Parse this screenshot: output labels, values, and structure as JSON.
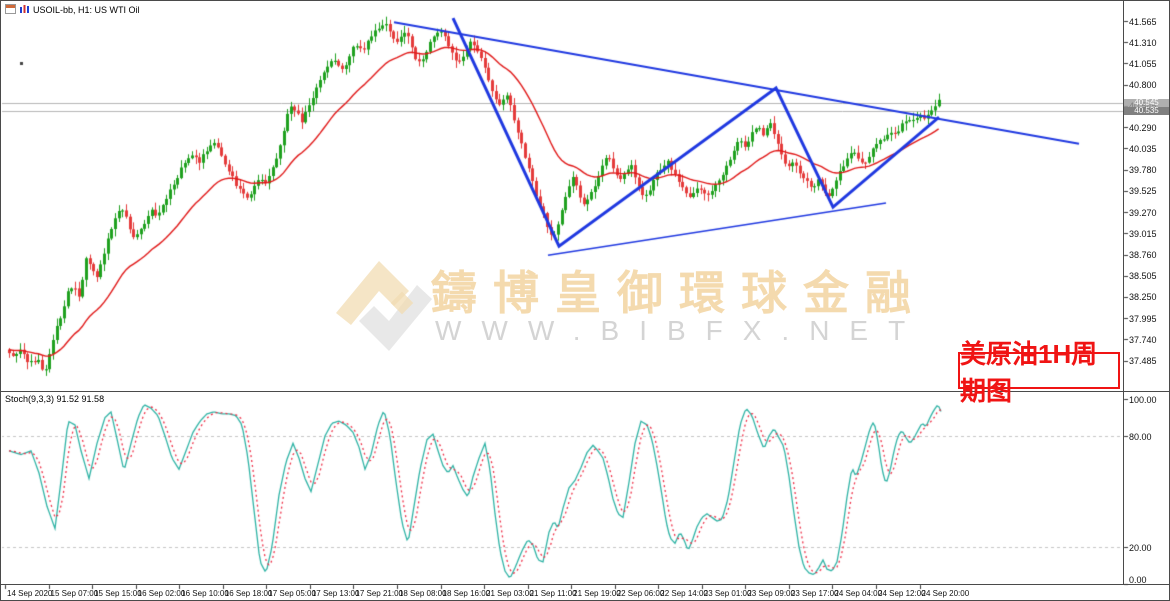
{
  "window": {
    "title": "USOIL-bb, H1: US WTI Oil"
  },
  "watermark": {
    "cjk": "鑄博皇御環球金融",
    "latin": "WWW.BIBFX.NET"
  },
  "annotation": {
    "label": "美原油1H周期图"
  },
  "indicator": {
    "label": "Stoch(9,3,3) 91.52 91.58"
  },
  "chart_data": {
    "type": "candlestick",
    "symbol": "USOIL-bb",
    "timeframe": "H1",
    "description": "US WTI Oil",
    "ask": "40.545",
    "bid": "40.535",
    "colors": {
      "bull": "#1fa11f",
      "bear": "#e43b3b",
      "ma": "#e01818",
      "trend": "#1f38e0",
      "stoch_k": "#2fb3a5",
      "stoch_d": "#ee3048",
      "grid": "#c4c4c4",
      "price_line": "#b4b4b4",
      "axis": "#333333"
    },
    "price_axis": {
      "max": 41.565,
      "step": 0.255,
      "min": 37.485,
      "labels": [
        "41.565",
        "41.310",
        "41.055",
        "40.800",
        "40.545",
        "40.290",
        "40.035",
        "39.780",
        "39.525",
        "39.270",
        "39.015",
        "38.760",
        "38.505",
        "38.250",
        "37.995",
        "37.740",
        "37.485"
      ]
    },
    "stoch_axis": {
      "labels": [
        "100.00",
        "80.00",
        "20.00",
        "0.00"
      ],
      "values": [
        100,
        80,
        20,
        0
      ],
      "dashed_levels": [
        80,
        20
      ],
      "last_k": 91.52,
      "last_d": 91.58
    },
    "time_axis": {
      "labels": [
        "14 Sep 2020",
        "15 Sep 07:00",
        "15 Sep 15:00",
        "16 Sep 02:00",
        "16 Sep 10:00",
        "16 Sep 18:00",
        "17 Sep 05:00",
        "17 Sep 13:00",
        "17 Sep 21:00",
        "18 Sep 08:00",
        "18 Sep 16:00",
        "21 Sep 03:00",
        "21 Sep 11:00",
        "21 Sep 19:00",
        "22 Sep 06:00",
        "22 Sep 14:00",
        "23 Sep 01:00",
        "23 Sep 09:00",
        "23 Sep 17:00",
        "24 Sep 04:00",
        "24 Sep 12:00",
        "24 Sep 20:00"
      ]
    },
    "price_path": [
      [
        8,
        37.62
      ],
      [
        16,
        37.55
      ],
      [
        24,
        37.6
      ],
      [
        32,
        37.45
      ],
      [
        40,
        37.5
      ],
      [
        46,
        37.32
      ],
      [
        52,
        37.55
      ],
      [
        58,
        37.85
      ],
      [
        64,
        38.05
      ],
      [
        70,
        38.3
      ],
      [
        76,
        38.4
      ],
      [
        82,
        38.25
      ],
      [
        88,
        38.7
      ],
      [
        94,
        38.6
      ],
      [
        100,
        38.5
      ],
      [
        106,
        38.75
      ],
      [
        112,
        39.0
      ],
      [
        118,
        39.2
      ],
      [
        124,
        39.35
      ],
      [
        130,
        39.15
      ],
      [
        136,
        38.95
      ],
      [
        142,
        39.05
      ],
      [
        148,
        39.15
      ],
      [
        154,
        39.3
      ],
      [
        160,
        39.2
      ],
      [
        166,
        39.35
      ],
      [
        172,
        39.5
      ],
      [
        178,
        39.65
      ],
      [
        184,
        39.8
      ],
      [
        190,
        39.9
      ],
      [
        196,
        39.95
      ],
      [
        202,
        39.85
      ],
      [
        208,
        40.0
      ],
      [
        214,
        40.1
      ],
      [
        220,
        40.05
      ],
      [
        226,
        39.9
      ],
      [
        232,
        39.75
      ],
      [
        238,
        39.6
      ],
      [
        244,
        39.5
      ],
      [
        250,
        39.45
      ],
      [
        256,
        39.55
      ],
      [
        262,
        39.7
      ],
      [
        268,
        39.6
      ],
      [
        274,
        39.75
      ],
      [
        280,
        39.95
      ],
      [
        286,
        40.25
      ],
      [
        292,
        40.55
      ],
      [
        298,
        40.5
      ],
      [
        304,
        40.35
      ],
      [
        310,
        40.5
      ],
      [
        316,
        40.65
      ],
      [
        322,
        40.85
      ],
      [
        328,
        41.0
      ],
      [
        334,
        41.1
      ],
      [
        340,
        41.05
      ],
      [
        346,
        40.95
      ],
      [
        352,
        41.15
      ],
      [
        358,
        41.3
      ],
      [
        364,
        41.2
      ],
      [
        370,
        41.3
      ],
      [
        376,
        41.45
      ],
      [
        382,
        41.5
      ],
      [
        388,
        41.55
      ],
      [
        394,
        41.4
      ],
      [
        400,
        41.3
      ],
      [
        406,
        41.45
      ],
      [
        412,
        41.35
      ],
      [
        418,
        41.1
      ],
      [
        424,
        41.05
      ],
      [
        430,
        41.25
      ],
      [
        436,
        41.4
      ],
      [
        442,
        41.45
      ],
      [
        448,
        41.35
      ],
      [
        454,
        41.2
      ],
      [
        460,
        41.05
      ],
      [
        466,
        41.15
      ],
      [
        472,
        41.3
      ],
      [
        478,
        41.25
      ],
      [
        484,
        41.1
      ],
      [
        490,
        40.9
      ],
      [
        496,
        40.7
      ],
      [
        502,
        40.55
      ],
      [
        508,
        40.7
      ],
      [
        514,
        40.5
      ],
      [
        520,
        40.25
      ],
      [
        526,
        40.0
      ],
      [
        532,
        39.75
      ],
      [
        538,
        39.5
      ],
      [
        544,
        39.3
      ],
      [
        550,
        39.1
      ],
      [
        556,
        38.95
      ],
      [
        562,
        39.2
      ],
      [
        568,
        39.45
      ],
      [
        574,
        39.7
      ],
      [
        580,
        39.55
      ],
      [
        586,
        39.35
      ],
      [
        592,
        39.45
      ],
      [
        598,
        39.6
      ],
      [
        604,
        39.8
      ],
      [
        610,
        39.95
      ],
      [
        616,
        39.8
      ],
      [
        622,
        39.65
      ],
      [
        628,
        39.75
      ],
      [
        634,
        39.85
      ],
      [
        640,
        39.6
      ],
      [
        646,
        39.45
      ],
      [
        652,
        39.55
      ],
      [
        658,
        39.7
      ],
      [
        664,
        39.8
      ],
      [
        670,
        39.9
      ],
      [
        676,
        39.75
      ],
      [
        682,
        39.6
      ],
      [
        688,
        39.5
      ],
      [
        694,
        39.45
      ],
      [
        700,
        39.55
      ],
      [
        706,
        39.5
      ],
      [
        712,
        39.45
      ],
      [
        718,
        39.6
      ],
      [
        724,
        39.7
      ],
      [
        730,
        39.85
      ],
      [
        736,
        40.0
      ],
      [
        742,
        40.15
      ],
      [
        748,
        40.05
      ],
      [
        754,
        40.2
      ],
      [
        760,
        40.3
      ],
      [
        766,
        40.2
      ],
      [
        772,
        40.35
      ],
      [
        778,
        40.15
      ],
      [
        784,
        39.95
      ],
      [
        790,
        39.8
      ],
      [
        796,
        39.9
      ],
      [
        802,
        39.75
      ],
      [
        808,
        39.65
      ],
      [
        814,
        39.55
      ],
      [
        820,
        39.65
      ],
      [
        826,
        39.55
      ],
      [
        832,
        39.45
      ],
      [
        838,
        39.65
      ],
      [
        844,
        39.8
      ],
      [
        850,
        39.9
      ],
      [
        856,
        40.0
      ],
      [
        862,
        39.9
      ],
      [
        868,
        39.85
      ],
      [
        874,
        40.0
      ],
      [
        880,
        40.1
      ],
      [
        886,
        40.15
      ],
      [
        892,
        40.25
      ],
      [
        898,
        40.2
      ],
      [
        904,
        40.3
      ],
      [
        910,
        40.4
      ],
      [
        916,
        40.35
      ],
      [
        922,
        40.45
      ],
      [
        928,
        40.4
      ],
      [
        934,
        40.5
      ],
      [
        939,
        40.55
      ],
      [
        943,
        40.7
      ]
    ],
    "trendlines": [
      {
        "name": "descending-resistance",
        "width": 2,
        "points": [
          [
            393,
            41.55
          ],
          [
            1078,
            40.09
          ]
        ]
      },
      {
        "name": "zigzag",
        "width": 3,
        "points": [
          [
            452,
            41.6
          ],
          [
            558,
            38.86
          ],
          [
            775,
            40.76
          ],
          [
            832,
            39.33
          ],
          [
            938,
            40.41
          ]
        ]
      },
      {
        "name": "ascending-support",
        "width": 1.5,
        "points": [
          [
            547,
            38.75
          ],
          [
            885,
            39.38
          ]
        ]
      }
    ],
    "stoch_k_path": [
      [
        8,
        72
      ],
      [
        20,
        70
      ],
      [
        30,
        72
      ],
      [
        38,
        60
      ],
      [
        46,
        42
      ],
      [
        54,
        30
      ],
      [
        61,
        60
      ],
      [
        67,
        88
      ],
      [
        74,
        86
      ],
      [
        80,
        72
      ],
      [
        88,
        57
      ],
      [
        96,
        76
      ],
      [
        104,
        90
      ],
      [
        110,
        93
      ],
      [
        117,
        76
      ],
      [
        123,
        61
      ],
      [
        130,
        76
      ],
      [
        137,
        90
      ],
      [
        143,
        97
      ],
      [
        150,
        95
      ],
      [
        157,
        91
      ],
      [
        164,
        80
      ],
      [
        171,
        68
      ],
      [
        178,
        62
      ],
      [
        185,
        72
      ],
      [
        192,
        82
      ],
      [
        199,
        88
      ],
      [
        206,
        92
      ],
      [
        213,
        93
      ],
      [
        221,
        92
      ],
      [
        228,
        92
      ],
      [
        235,
        91
      ],
      [
        241,
        86
      ],
      [
        247,
        68
      ],
      [
        253,
        40
      ],
      [
        259,
        12
      ],
      [
        265,
        6
      ],
      [
        271,
        20
      ],
      [
        278,
        48
      ],
      [
        285,
        66
      ],
      [
        292,
        76
      ],
      [
        298,
        68
      ],
      [
        304,
        57
      ],
      [
        310,
        50
      ],
      [
        317,
        65
      ],
      [
        324,
        80
      ],
      [
        331,
        87
      ],
      [
        338,
        88
      ],
      [
        345,
        86
      ],
      [
        352,
        82
      ],
      [
        358,
        74
      ],
      [
        364,
        62
      ],
      [
        370,
        70
      ],
      [
        377,
        86
      ],
      [
        383,
        94
      ],
      [
        389,
        80
      ],
      [
        395,
        55
      ],
      [
        401,
        33
      ],
      [
        407,
        22
      ],
      [
        413,
        42
      ],
      [
        419,
        62
      ],
      [
        426,
        78
      ],
      [
        432,
        81
      ],
      [
        437,
        72
      ],
      [
        442,
        64
      ],
      [
        447,
        60
      ],
      [
        452,
        64
      ],
      [
        457,
        57
      ],
      [
        462,
        51
      ],
      [
        467,
        47
      ],
      [
        472,
        58
      ],
      [
        478,
        68
      ],
      [
        484,
        76
      ],
      [
        489,
        62
      ],
      [
        494,
        38
      ],
      [
        499,
        18
      ],
      [
        504,
        7
      ],
      [
        509,
        3
      ],
      [
        515,
        10
      ],
      [
        521,
        18
      ],
      [
        527,
        24
      ],
      [
        532,
        21
      ],
      [
        537,
        13
      ],
      [
        542,
        12
      ],
      [
        548,
        28
      ],
      [
        553,
        34
      ],
      [
        557,
        30
      ],
      [
        562,
        41
      ],
      [
        568,
        52
      ],
      [
        574,
        56
      ],
      [
        580,
        63
      ],
      [
        586,
        71
      ],
      [
        592,
        75
      ],
      [
        597,
        72
      ],
      [
        602,
        68
      ],
      [
        607,
        58
      ],
      [
        612,
        46
      ],
      [
        617,
        38
      ],
      [
        622,
        36
      ],
      [
        628,
        55
      ],
      [
        634,
        76
      ],
      [
        640,
        88
      ],
      [
        646,
        86
      ],
      [
        651,
        78
      ],
      [
        656,
        64
      ],
      [
        661,
        48
      ],
      [
        665,
        34
      ],
      [
        669,
        25
      ],
      [
        674,
        22
      ],
      [
        679,
        28
      ],
      [
        683,
        24
      ],
      [
        687,
        18
      ],
      [
        691,
        23
      ],
      [
        696,
        31
      ],
      [
        701,
        36
      ],
      [
        706,
        38
      ],
      [
        711,
        36
      ],
      [
        716,
        34
      ],
      [
        721,
        35
      ],
      [
        727,
        46
      ],
      [
        733,
        66
      ],
      [
        739,
        86
      ],
      [
        745,
        95
      ],
      [
        751,
        91
      ],
      [
        757,
        81
      ],
      [
        763,
        73
      ],
      [
        768,
        80
      ],
      [
        773,
        84
      ],
      [
        778,
        79
      ],
      [
        783,
        74
      ],
      [
        788,
        58
      ],
      [
        793,
        38
      ],
      [
        798,
        20
      ],
      [
        803,
        9
      ],
      [
        808,
        6
      ],
      [
        813,
        5
      ],
      [
        818,
        9
      ],
      [
        822,
        13
      ],
      [
        826,
        8
      ],
      [
        831,
        7
      ],
      [
        836,
        12
      ],
      [
        841,
        27
      ],
      [
        846,
        47
      ],
      [
        851,
        63
      ],
      [
        855,
        58
      ],
      [
        860,
        66
      ],
      [
        865,
        76
      ],
      [
        869,
        84
      ],
      [
        873,
        88
      ],
      [
        877,
        77
      ],
      [
        881,
        62
      ],
      [
        885,
        54
      ],
      [
        889,
        61
      ],
      [
        893,
        72
      ],
      [
        897,
        80
      ],
      [
        901,
        83
      ],
      [
        905,
        79
      ],
      [
        909,
        76
      ],
      [
        913,
        79
      ],
      [
        917,
        83
      ],
      [
        921,
        87
      ],
      [
        925,
        85
      ],
      [
        929,
        90
      ],
      [
        933,
        94
      ],
      [
        937,
        97
      ],
      [
        941,
        92
      ]
    ],
    "marker_dot": [
      20,
      62
    ]
  }
}
